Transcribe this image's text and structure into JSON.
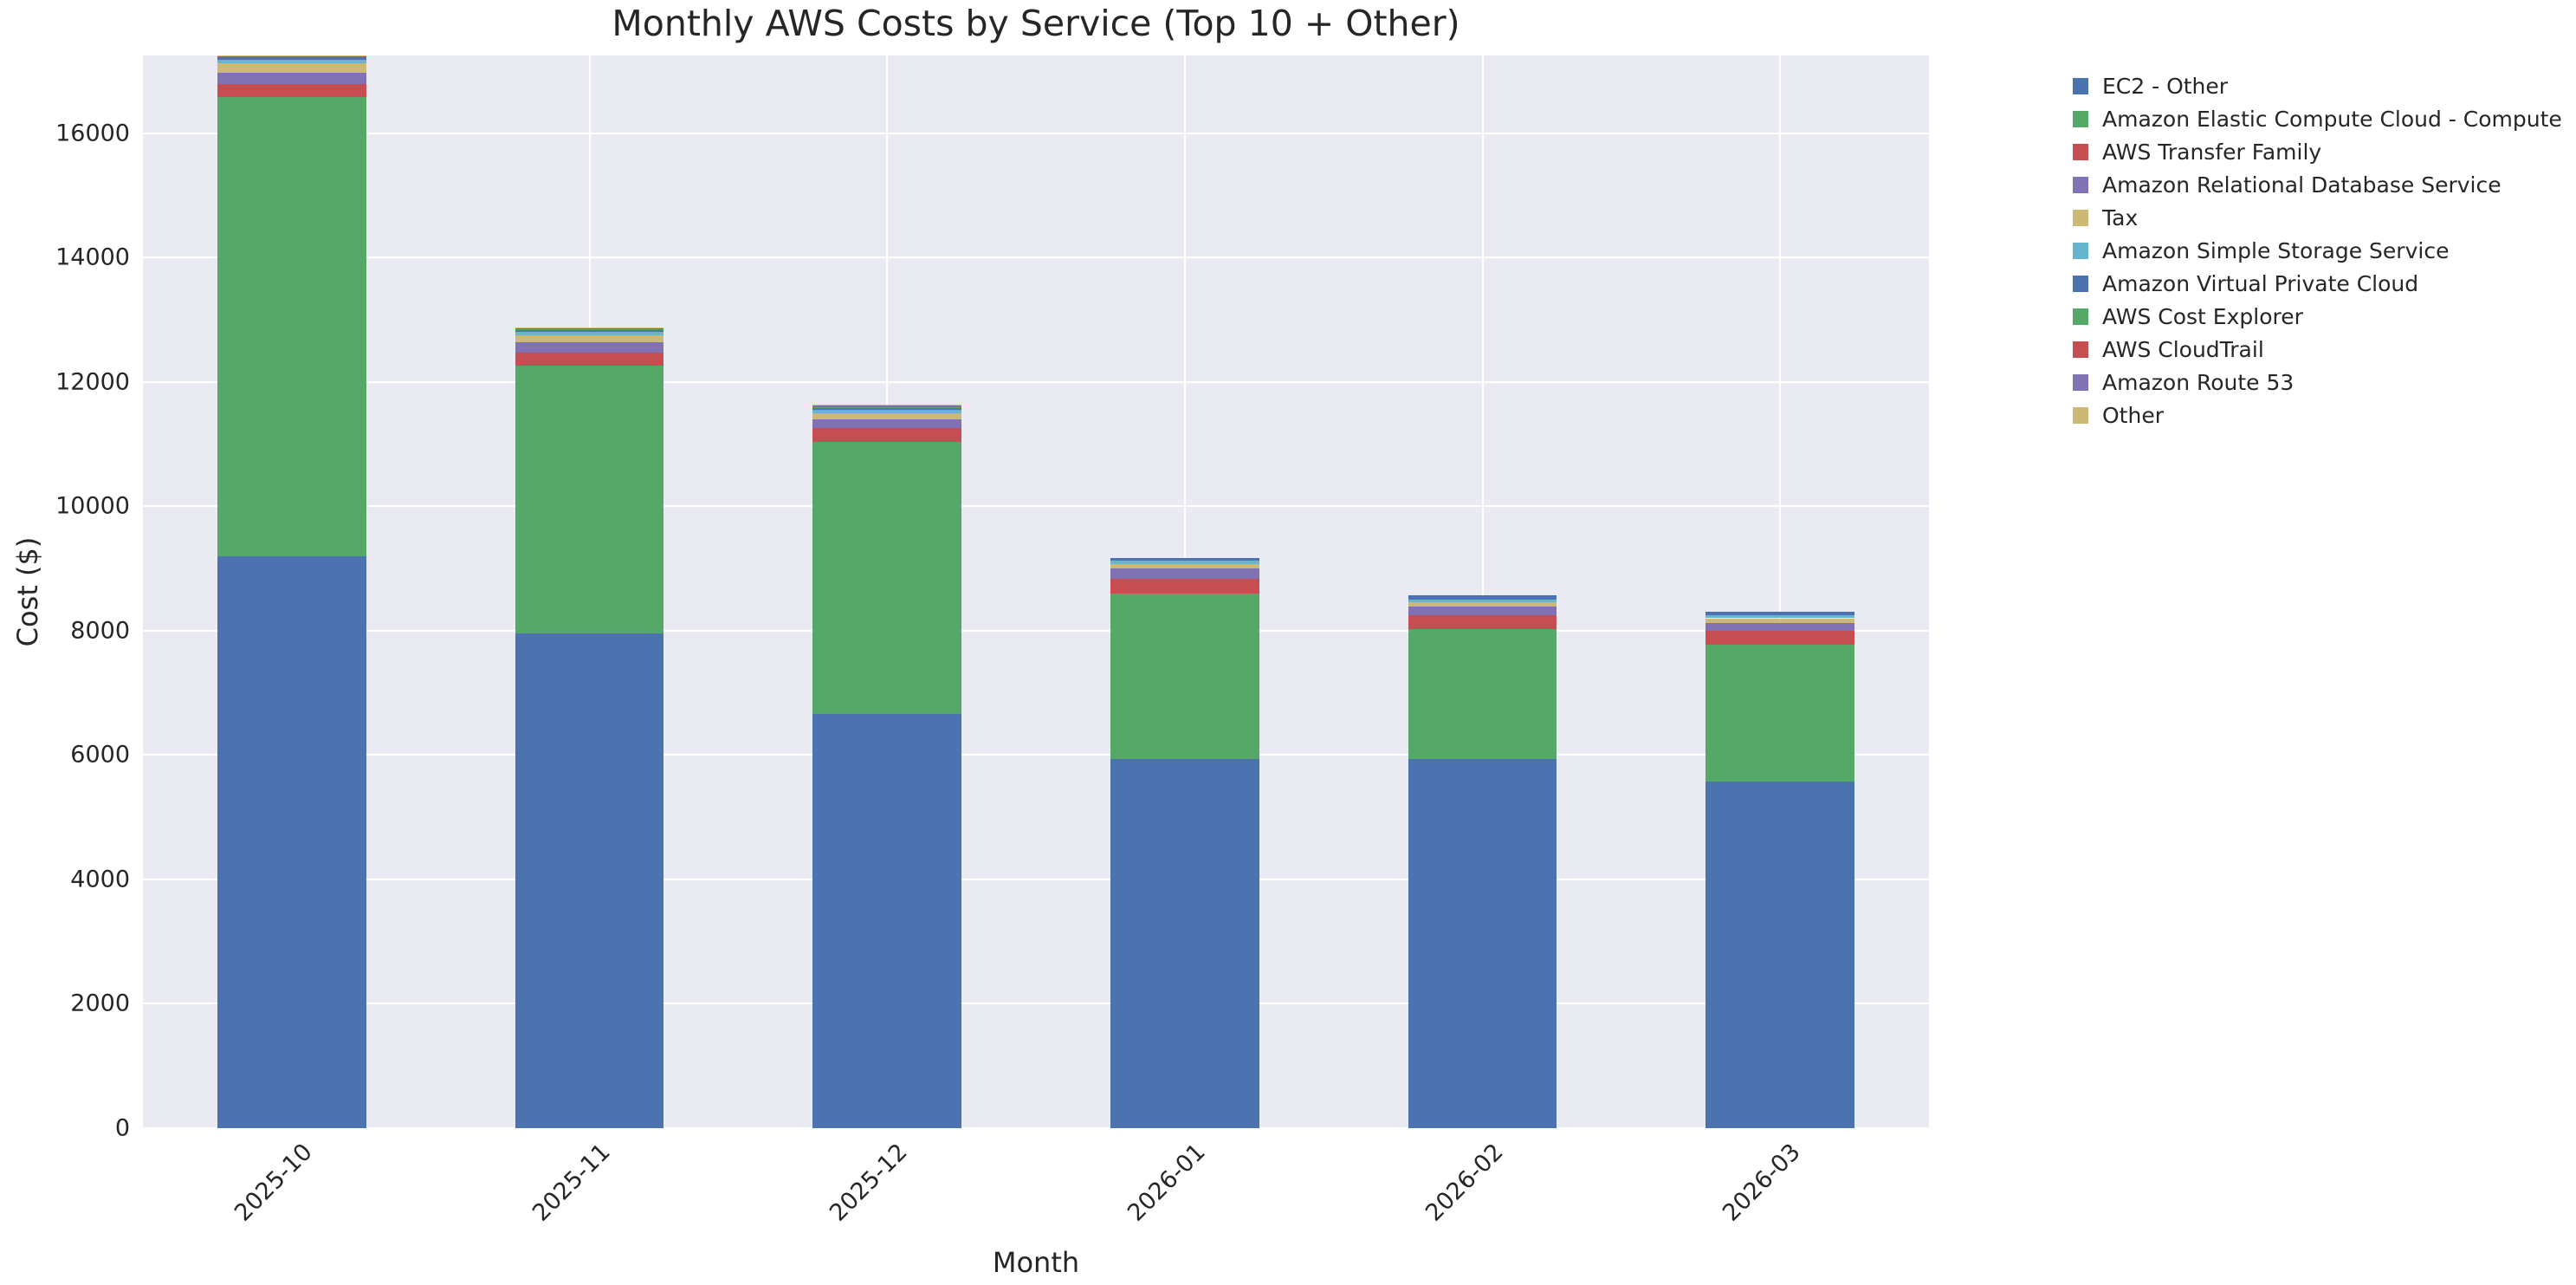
{
  "figure": {
    "title": "Monthly AWS Costs by Service (Top 10 + Other)",
    "xlabel": "Month",
    "ylabel": "Cost ($)"
  },
  "chart_data": {
    "type": "bar",
    "stacked": true,
    "title": "Monthly AWS Costs by Service (Top 10 + Other)",
    "xlabel": "Month",
    "ylabel": "Cost ($)",
    "categories": [
      "2025-10",
      "2025-11",
      "2025-12",
      "2026-01",
      "2026-02",
      "2026-03"
    ],
    "series": [
      {
        "name": "EC2 - Other",
        "color": "#4c72b0",
        "values": [
          9190,
          7950,
          6660,
          5940,
          5940,
          5580
        ]
      },
      {
        "name": "Amazon Elastic Compute Cloud - Compute",
        "color": "#55a868",
        "values": [
          7385,
          4310,
          4375,
          2660,
          2085,
          2190
        ]
      },
      {
        "name": "AWS Transfer Family",
        "color": "#c44e52",
        "values": [
          215,
          210,
          225,
          230,
          225,
          225
        ]
      },
      {
        "name": "Amazon Relational Database Service",
        "color": "#8172b3",
        "values": [
          185,
          165,
          140,
          165,
          140,
          130
        ]
      },
      {
        "name": "Tax",
        "color": "#ccb974",
        "values": [
          150,
          110,
          100,
          70,
          70,
          75
        ]
      },
      {
        "name": "Amazon Simple Storage Service",
        "color": "#64b5cd",
        "values": [
          50,
          55,
          45,
          60,
          45,
          55
        ]
      },
      {
        "name": "Amazon Virtual Private Cloud",
        "color": "#4c72b0",
        "values": [
          50,
          40,
          40,
          40,
          60,
          45
        ]
      },
      {
        "name": "AWS Cost Explorer",
        "color": "#55a868",
        "values": [
          5,
          5,
          5,
          0,
          0,
          0
        ]
      },
      {
        "name": "AWS CloudTrail",
        "color": "#c44e52",
        "values": [
          10,
          20,
          15,
          0,
          0,
          0
        ]
      },
      {
        "name": "Amazon Route 53",
        "color": "#8172b3",
        "values": [
          5,
          5,
          30,
          0,
          0,
          0
        ]
      },
      {
        "name": "Other",
        "color": "#ccb974",
        "values": [
          5,
          5,
          5,
          0,
          0,
          0
        ]
      }
    ],
    "totals": [
      17250,
      12875,
      11640,
      9165,
      8565,
      8300
    ],
    "ylim": [
      0,
      17250
    ],
    "yticks": [
      0,
      2000,
      4000,
      6000,
      8000,
      10000,
      12000,
      14000,
      16000
    ],
    "grid": true,
    "bar_width_fraction": 0.5,
    "legend_position": "outside-right",
    "style": {
      "plot_background": "#eaeaf2",
      "grid_color": "#ffffff",
      "text_color": "#262626",
      "figure_background": "#ffffff"
    }
  }
}
